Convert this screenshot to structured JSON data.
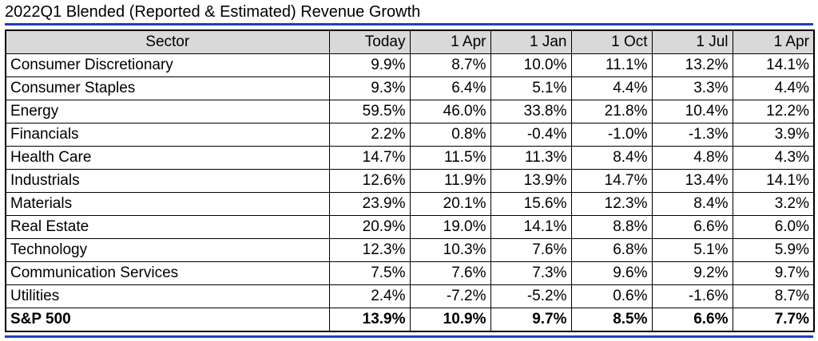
{
  "chart_data": {
    "type": "table",
    "title": "2022Q1 Blended (Reported & Estimated) Revenue Growth",
    "columns": [
      "Sector",
      "Today",
      "1 Apr",
      "1 Jan",
      "1 Oct",
      "1 Jul",
      "1 Apr"
    ],
    "rows": [
      {
        "sector": "Consumer Discretionary",
        "values": [
          "9.9%",
          "8.7%",
          "10.0%",
          "11.1%",
          "13.2%",
          "14.1%"
        ]
      },
      {
        "sector": "Consumer Staples",
        "values": [
          "9.3%",
          "6.4%",
          "5.1%",
          "4.4%",
          "3.3%",
          "4.4%"
        ]
      },
      {
        "sector": "Energy",
        "values": [
          "59.5%",
          "46.0%",
          "33.8%",
          "21.8%",
          "10.4%",
          "12.2%"
        ]
      },
      {
        "sector": "Financials",
        "values": [
          "2.2%",
          "0.8%",
          "-0.4%",
          "-1.0%",
          "-1.3%",
          "3.9%"
        ]
      },
      {
        "sector": "Health Care",
        "values": [
          "14.7%",
          "11.5%",
          "11.3%",
          "8.4%",
          "4.8%",
          "4.3%"
        ]
      },
      {
        "sector": "Industrials",
        "values": [
          "12.6%",
          "11.9%",
          "13.9%",
          "14.7%",
          "13.4%",
          "14.1%"
        ]
      },
      {
        "sector": "Materials",
        "values": [
          "23.9%",
          "20.1%",
          "15.6%",
          "12.3%",
          "8.4%",
          "3.2%"
        ]
      },
      {
        "sector": "Real Estate",
        "values": [
          "20.9%",
          "19.0%",
          "14.1%",
          "8.8%",
          "6.6%",
          "6.0%"
        ]
      },
      {
        "sector": "Technology",
        "values": [
          "12.3%",
          "10.3%",
          "7.6%",
          "6.8%",
          "5.1%",
          "5.9%"
        ]
      },
      {
        "sector": "Communication Services",
        "values": [
          "7.5%",
          "7.6%",
          "7.3%",
          "9.6%",
          "9.2%",
          "9.7%"
        ]
      },
      {
        "sector": "Utilities",
        "values": [
          "2.4%",
          "-7.2%",
          "-5.2%",
          "0.6%",
          "-1.6%",
          "8.7%"
        ]
      }
    ],
    "total": {
      "sector": "S&P 500",
      "values": [
        "13.9%",
        "10.9%",
        "9.7%",
        "8.5%",
        "6.6%",
        "7.7%"
      ]
    },
    "colors": {
      "header_bg": "#d9d9d9",
      "rule": "#1f3fbf",
      "border": "#000000"
    }
  }
}
